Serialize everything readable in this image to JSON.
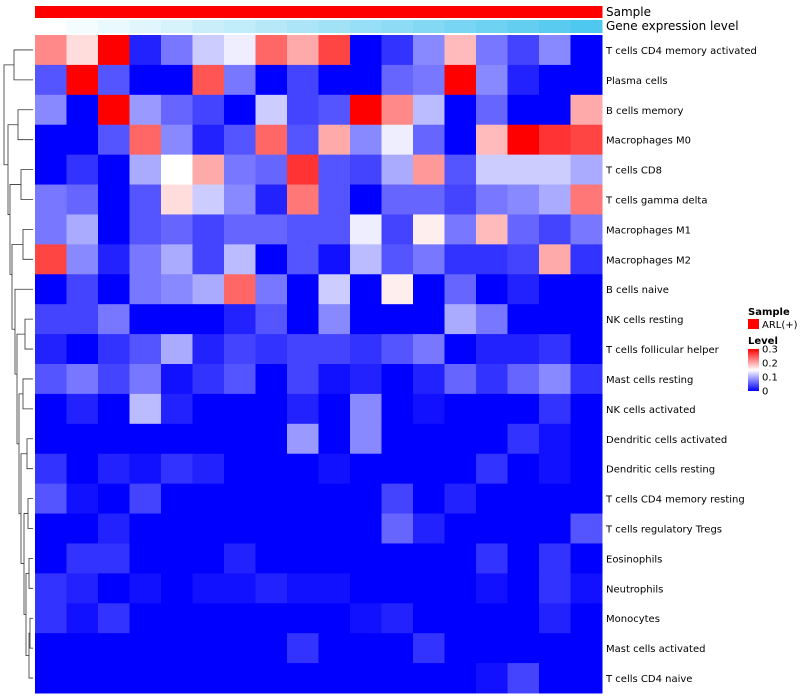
{
  "chart_data": {
    "type": "heatmap",
    "title": "",
    "column_annotations": [
      {
        "name": "Sample",
        "color": "#ff0000"
      },
      {
        "name": "Gene expression level",
        "gradient_from": "#ffffff",
        "gradient_to": "#4fc8ef"
      }
    ],
    "rows": [
      "T cells CD4 memory activated",
      "Plasma cells",
      "B cells memory",
      "Macrophages M0",
      "T cells CD8",
      "T cells gamma delta",
      "Macrophages M1",
      "Macrophages M2",
      "B cells naive",
      "NK cells resting",
      "T cells follicular helper",
      "Mast cells resting",
      "NK cells activated",
      "Dendritic cells activated",
      "Dendritic cells resting",
      "T cells CD4 memory resting",
      "T cells regulatory  Tregs",
      "Eosinophils",
      "Neutrophils",
      "Monocytes",
      "Mast cells activated",
      "T cells CD4 naive"
    ],
    "num_columns": 18,
    "values": [
      [
        0.22,
        0.17,
        0.3,
        0.02,
        0.07,
        0.12,
        0.14,
        0.24,
        0.2,
        0.26,
        0.0,
        0.03,
        0.08,
        0.19,
        0.07,
        0.04,
        0.08,
        0.0
      ],
      [
        0.05,
        0.3,
        0.05,
        0.0,
        0.0,
        0.25,
        0.07,
        0.0,
        0.04,
        0.0,
        0.0,
        0.06,
        0.07,
        0.3,
        0.08,
        0.02,
        0.0,
        0.0
      ],
      [
        0.08,
        0.0,
        0.3,
        0.09,
        0.06,
        0.04,
        0.0,
        0.12,
        0.04,
        0.05,
        0.3,
        0.22,
        0.11,
        0.0,
        0.06,
        0.0,
        0.0,
        0.2
      ],
      [
        0.0,
        0.0,
        0.05,
        0.24,
        0.08,
        0.02,
        0.05,
        0.24,
        0.05,
        0.2,
        0.08,
        0.14,
        0.06,
        0.0,
        0.19,
        0.3,
        0.27,
        0.26
      ],
      [
        0.0,
        0.03,
        0.0,
        0.1,
        0.15,
        0.2,
        0.07,
        0.06,
        0.27,
        0.05,
        0.04,
        0.1,
        0.21,
        0.05,
        0.12,
        0.12,
        0.12,
        0.1
      ],
      [
        0.07,
        0.06,
        0.0,
        0.05,
        0.17,
        0.12,
        0.08,
        0.02,
        0.23,
        0.05,
        0.0,
        0.06,
        0.06,
        0.04,
        0.07,
        0.08,
        0.1,
        0.23
      ],
      [
        0.07,
        0.1,
        0.0,
        0.05,
        0.06,
        0.04,
        0.06,
        0.06,
        0.05,
        0.05,
        0.14,
        0.04,
        0.16,
        0.07,
        0.19,
        0.06,
        0.04,
        0.07
      ],
      [
        0.26,
        0.08,
        0.02,
        0.07,
        0.1,
        0.04,
        0.11,
        0.0,
        0.05,
        0.01,
        0.11,
        0.05,
        0.07,
        0.03,
        0.03,
        0.04,
        0.2,
        0.03
      ],
      [
        0.0,
        0.04,
        0.0,
        0.07,
        0.08,
        0.1,
        0.24,
        0.07,
        0.0,
        0.12,
        0.0,
        0.16,
        0.0,
        0.06,
        0.0,
        0.02,
        0.0,
        0.0
      ],
      [
        0.04,
        0.04,
        0.07,
        0.0,
        0.0,
        0.0,
        0.02,
        0.05,
        0.0,
        0.08,
        0.0,
        0.0,
        0.0,
        0.1,
        0.07,
        0.0,
        0.0,
        0.0
      ],
      [
        0.02,
        0.0,
        0.03,
        0.05,
        0.1,
        0.02,
        0.04,
        0.03,
        0.04,
        0.04,
        0.03,
        0.05,
        0.07,
        0.0,
        0.02,
        0.02,
        0.03,
        0.0
      ],
      [
        0.05,
        0.07,
        0.04,
        0.07,
        0.01,
        0.03,
        0.05,
        0.0,
        0.04,
        0.01,
        0.02,
        0.0,
        0.02,
        0.06,
        0.03,
        0.06,
        0.08,
        0.03
      ],
      [
        0.0,
        0.02,
        0.0,
        0.11,
        0.02,
        0.0,
        0.0,
        0.0,
        0.02,
        0.0,
        0.08,
        0.0,
        0.01,
        0.0,
        0.0,
        0.0,
        0.03,
        0.0
      ],
      [
        0.0,
        0.0,
        0.0,
        0.0,
        0.0,
        0.0,
        0.0,
        0.0,
        0.09,
        0.0,
        0.08,
        0.0,
        0.0,
        0.0,
        0.0,
        0.03,
        0.01,
        0.0
      ],
      [
        0.03,
        0.0,
        0.02,
        0.01,
        0.03,
        0.02,
        0.0,
        0.0,
        0.0,
        0.01,
        0.0,
        0.0,
        0.0,
        0.0,
        0.03,
        0.0,
        0.01,
        0.0
      ],
      [
        0.05,
        0.01,
        0.0,
        0.04,
        0.0,
        0.0,
        0.0,
        0.0,
        0.0,
        0.0,
        0.0,
        0.04,
        0.0,
        0.02,
        0.0,
        0.0,
        0.0,
        0.0
      ],
      [
        0.0,
        0.0,
        0.02,
        0.0,
        0.0,
        0.0,
        0.0,
        0.0,
        0.0,
        0.0,
        0.0,
        0.06,
        0.02,
        0.0,
        0.0,
        0.0,
        0.0,
        0.05
      ],
      [
        0.0,
        0.03,
        0.03,
        0.0,
        0.0,
        0.0,
        0.02,
        0.0,
        0.0,
        0.0,
        0.0,
        0.0,
        0.0,
        0.0,
        0.03,
        0.0,
        0.03,
        0.0
      ],
      [
        0.03,
        0.02,
        0.0,
        0.01,
        0.0,
        0.01,
        0.01,
        0.02,
        0.01,
        0.01,
        0.0,
        0.0,
        0.0,
        0.0,
        0.01,
        0.0,
        0.03,
        0.01
      ],
      [
        0.03,
        0.01,
        0.03,
        0.0,
        0.0,
        0.0,
        0.0,
        0.0,
        0.0,
        0.0,
        0.01,
        0.02,
        0.0,
        0.0,
        0.0,
        0.0,
        0.02,
        0.0
      ],
      [
        0.0,
        0.0,
        0.0,
        0.0,
        0.0,
        0.0,
        0.0,
        0.0,
        0.03,
        0.0,
        0.0,
        0.0,
        0.03,
        0.0,
        0.0,
        0.0,
        0.0,
        0.0
      ],
      [
        0.0,
        0.0,
        0.0,
        0.0,
        0.0,
        0.0,
        0.0,
        0.0,
        0.0,
        0.0,
        0.0,
        0.0,
        0.0,
        0.0,
        0.01,
        0.04,
        0.0,
        0.0
      ]
    ],
    "color_scale": {
      "min": 0,
      "mid": 0.15,
      "max": 0.3,
      "low_color": "#0000ff",
      "mid_color": "#ffffff",
      "high_color": "#ff0000"
    },
    "legend": {
      "sample_title": "Sample",
      "sample_entry": "ARL(+)",
      "level_title": "Level",
      "level_ticks": [
        "0.3",
        "0.2",
        "0.1",
        "0"
      ],
      "level_tick_values": [
        0.3,
        0.2,
        0.1,
        0
      ]
    }
  }
}
